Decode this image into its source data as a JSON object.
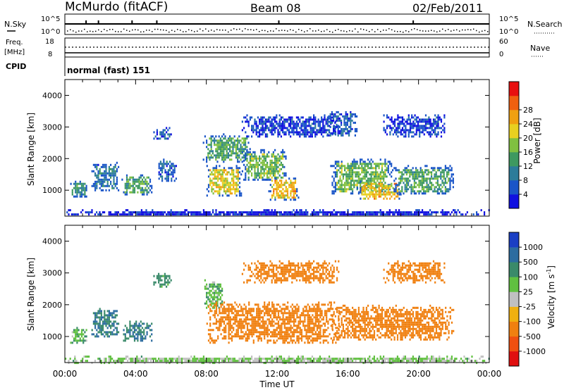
{
  "header": {
    "title": "McMurdo (fitACF)",
    "beam": "Beam 08",
    "date": "02/Feb/2011"
  },
  "top_strips": {
    "nsky_label": "N.Sky",
    "nsearch_label": "N.Search",
    "noise_ticks": [
      "10^5",
      "10^0"
    ],
    "freq_label": "Freq.",
    "freq_unit": "[MHz]",
    "freq_ticks": [
      "18",
      "8"
    ],
    "nave_label": "Nave",
    "nave_ticks": [
      "60",
      "0"
    ],
    "cpid_label": "CPID",
    "cpid_value": "normal (fast) 151"
  },
  "chart_data": [
    {
      "type": "heatmap",
      "name": "power",
      "ylabel": "Slant Range [km]",
      "xlabel": "",
      "ylim": [
        180,
        4500
      ],
      "xlim_hours": [
        0,
        24
      ],
      "yticks": [
        "1000",
        "2000",
        "3000",
        "4000"
      ],
      "colorbar_label": "Power [dB]",
      "colorbar_ticks": [
        "4",
        "8",
        "12",
        "16",
        "20",
        "24",
        "28"
      ],
      "colorscale": [
        "#1010e0",
        "#1a55c8",
        "#2c7c9a",
        "#3e9960",
        "#80c040",
        "#e8d020",
        "#f0a010",
        "#f06010",
        "#e81010"
      ],
      "regions": [
        {
          "t0": 0.0,
          "t1": 24.0,
          "r0": 200,
          "r1": 400,
          "p": 2
        },
        {
          "t0": 0.3,
          "t1": 1.2,
          "r0": 800,
          "r1": 1300,
          "p": 10
        },
        {
          "t0": 1.5,
          "t1": 3.0,
          "r0": 1000,
          "r1": 1900,
          "p": 8
        },
        {
          "t0": 3.2,
          "t1": 4.9,
          "r0": 850,
          "r1": 1500,
          "p": 12
        },
        {
          "t0": 5.0,
          "t1": 6.0,
          "r0": 2600,
          "r1": 3000,
          "p": 6
        },
        {
          "t0": 5.2,
          "t1": 6.3,
          "r0": 1300,
          "r1": 2000,
          "p": 6
        },
        {
          "t0": 7.8,
          "t1": 10.5,
          "r0": 1900,
          "r1": 2800,
          "p": 12
        },
        {
          "t0": 8.0,
          "t1": 10.0,
          "r0": 800,
          "r1": 1800,
          "p": 18
        },
        {
          "t0": 10.0,
          "t1": 12.5,
          "r0": 1300,
          "r1": 2300,
          "p": 14
        },
        {
          "t0": 11.5,
          "t1": 13.2,
          "r0": 700,
          "r1": 1400,
          "p": 20
        },
        {
          "t0": 10.0,
          "t1": 15.5,
          "r0": 2700,
          "r1": 3400,
          "p": 4
        },
        {
          "t0": 14.8,
          "t1": 16.5,
          "r0": 2700,
          "r1": 3500,
          "p": 6
        },
        {
          "t0": 15.0,
          "t1": 18.5,
          "r0": 900,
          "r1": 2000,
          "p": 14
        },
        {
          "t0": 16.5,
          "t1": 19.0,
          "r0": 700,
          "r1": 1300,
          "p": 20
        },
        {
          "t0": 18.5,
          "t1": 22.0,
          "r0": 900,
          "r1": 1800,
          "p": 12
        },
        {
          "t0": 18.0,
          "t1": 21.5,
          "r0": 2700,
          "r1": 3400,
          "p": 4
        }
      ]
    },
    {
      "type": "heatmap",
      "name": "velocity",
      "ylabel": "Slant Range [km]",
      "xlabel": "Time UT",
      "ylim": [
        180,
        4500
      ],
      "xlim_hours": [
        0,
        24
      ],
      "xticks": [
        "00:00",
        "04:00",
        "08:00",
        "12:00",
        "16:00",
        "20:00",
        "00:00"
      ],
      "yticks": [
        "1000",
        "2000",
        "3000",
        "4000"
      ],
      "colorbar_label": "Velocity [m s",
      "colorbar_unit_exp": "-1",
      "colorbar_unit_close": "]",
      "colorbar_ticks": [
        "1000",
        "500",
        "100",
        "25",
        "-25",
        "-100",
        "-500",
        "-1000"
      ],
      "colorscale": [
        "#1a3fc4",
        "#2c6ca0",
        "#3a8a6a",
        "#60c040",
        "#c0c0c0",
        "#f0b010",
        "#f08010",
        "#f05010",
        "#e01010"
      ],
      "regions": [
        {
          "t0": 0.0,
          "t1": 24.0,
          "r0": 200,
          "r1": 400,
          "v": 30
        },
        {
          "t0": 0.3,
          "t1": 1.2,
          "r0": 800,
          "r1": 1300,
          "v": 50
        },
        {
          "t0": 1.5,
          "t1": 3.0,
          "r0": 1000,
          "r1": 1900,
          "v": 300
        },
        {
          "t0": 3.2,
          "t1": 4.9,
          "r0": 850,
          "r1": 1500,
          "v": 300
        },
        {
          "t0": 5.0,
          "t1": 6.0,
          "r0": 2600,
          "r1": 3000,
          "v": 100
        },
        {
          "t0": 7.8,
          "t1": 9.0,
          "r0": 1900,
          "r1": 2800,
          "v": 50
        },
        {
          "t0": 8.0,
          "t1": 15.5,
          "r0": 800,
          "r1": 2100,
          "v": -250
        },
        {
          "t0": 10.0,
          "t1": 15.5,
          "r0": 2700,
          "r1": 3400,
          "v": -250
        },
        {
          "t0": 15.0,
          "t1": 22.0,
          "r0": 900,
          "r1": 2000,
          "v": -250
        },
        {
          "t0": 18.0,
          "t1": 21.5,
          "r0": 2700,
          "r1": 3400,
          "v": -250
        }
      ]
    }
  ]
}
